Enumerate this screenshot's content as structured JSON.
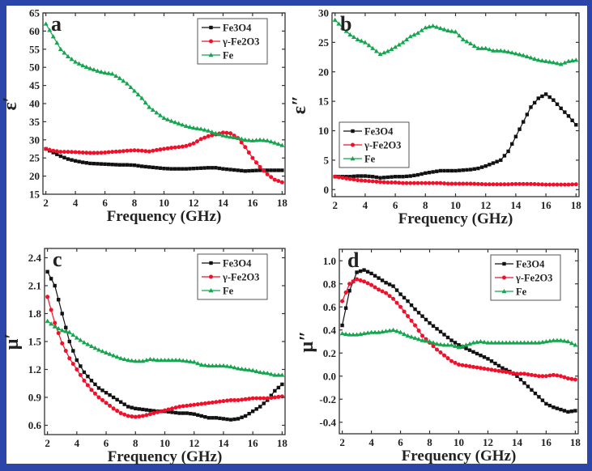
{
  "colors": {
    "frame": "#2b45a8",
    "Fe3O4": "#111111",
    "gFe2O3": "#f0102a",
    "Fe": "#15a54e"
  },
  "chart_data": [
    {
      "type": "line",
      "panel_label": "a",
      "ylabel": "ε′",
      "xlabel": "Frequency (GHz)",
      "xlim": [
        1.8,
        18.2
      ],
      "ylim": [
        15,
        65
      ],
      "xticks": [
        "2",
        "4",
        "6",
        "8",
        "10",
        "12",
        "14",
        "16",
        "18"
      ],
      "yticks": [
        "15",
        "20",
        "25",
        "30",
        "35",
        "40",
        "45",
        "50",
        "55",
        "60",
        "65"
      ],
      "legend_position": "top-right",
      "grid": false,
      "x": [
        2,
        2.5,
        3,
        3.5,
        4,
        4.5,
        5,
        5.5,
        6,
        6.5,
        7,
        7.5,
        8,
        8.5,
        9,
        9.5,
        10,
        10.5,
        11,
        11.5,
        12,
        12.5,
        13,
        13.5,
        14,
        14.5,
        15,
        15.5,
        16,
        16.5,
        17,
        17.5,
        18
      ],
      "series": [
        {
          "name": "Fe3O4",
          "marker": "square",
          "values": [
            27.5,
            26.5,
            25.5,
            24.7,
            24.2,
            23.8,
            23.5,
            23.4,
            23.3,
            23.2,
            23.1,
            23.1,
            23,
            22.7,
            22.5,
            22.3,
            22.1,
            22,
            22,
            22,
            22.1,
            22.2,
            22.3,
            22.3,
            22,
            21.8,
            21.6,
            21.4,
            21.5,
            21.6,
            21.6,
            21.6,
            21.6
          ]
        },
        {
          "name": "γ-Fe2O3",
          "marker": "circle",
          "values": [
            27.5,
            27,
            26.7,
            26.7,
            26.6,
            26.5,
            26.4,
            26.4,
            26.5,
            26.7,
            26.8,
            27,
            27.1,
            27,
            26.8,
            27.2,
            27.5,
            27.8,
            28,
            28.3,
            29,
            30.2,
            31,
            31.5,
            32,
            31.8,
            30.5,
            28,
            25,
            22.5,
            20.5,
            19,
            18.3
          ]
        },
        {
          "name": "Fe",
          "marker": "triangle",
          "values": [
            62,
            58.5,
            55,
            53,
            51.5,
            50.5,
            49.7,
            49,
            48.5,
            48.2,
            47,
            45.5,
            43.5,
            41.5,
            39,
            37.5,
            36,
            35.2,
            34.5,
            33.8,
            33.3,
            33,
            32.5,
            31.8,
            31.2,
            30.8,
            30.5,
            30,
            29.8,
            30,
            29.8,
            29.2,
            28.5
          ]
        }
      ]
    },
    {
      "type": "line",
      "panel_label": "b",
      "ylabel": "ε″",
      "xlabel": "Frequency (GHz)",
      "xlim": [
        1.8,
        18.2
      ],
      "ylim": [
        -1.2,
        30
      ],
      "xticks": [
        "2",
        "4",
        "6",
        "8",
        "10",
        "12",
        "14",
        "16",
        "18"
      ],
      "yticks": [
        "0",
        "5",
        "10",
        "15",
        "20",
        "25",
        "30"
      ],
      "legend_position": "center-left",
      "grid": false,
      "x": [
        2,
        2.5,
        3,
        3.5,
        4,
        4.5,
        5,
        5.5,
        6,
        6.5,
        7,
        7.5,
        8,
        8.5,
        9,
        9.5,
        10,
        10.5,
        11,
        11.5,
        12,
        12.5,
        13,
        13.5,
        14,
        14.5,
        15,
        15.5,
        16,
        16.5,
        17,
        17.5,
        18
      ],
      "series": [
        {
          "name": "Fe3O4",
          "marker": "square",
          "values": [
            2.2,
            2.2,
            2.2,
            2.3,
            2.3,
            2.2,
            2.0,
            2.1,
            2.2,
            2.2,
            2.3,
            2.5,
            2.8,
            3.0,
            3.2,
            3.2,
            3.2,
            3.3,
            3.4,
            3.6,
            4.0,
            4.5,
            5.0,
            6.5,
            9.0,
            11.5,
            14,
            15.5,
            16.2,
            15.2,
            13.8,
            12.5,
            11
          ]
        },
        {
          "name": "γ-Fe2O3",
          "marker": "circle",
          "values": [
            2.2,
            2.0,
            1.8,
            1.6,
            1.5,
            1.4,
            1.3,
            1.2,
            1.2,
            1.1,
            1.1,
            1.1,
            1.1,
            1.1,
            1.1,
            1.0,
            1.0,
            1.0,
            1.0,
            0.95,
            0.9,
            0.9,
            0.9,
            0.9,
            0.95,
            0.95,
            0.95,
            0.9,
            0.85,
            0.85,
            0.85,
            0.85,
            0.9
          ]
        },
        {
          "name": "Fe",
          "marker": "triangle",
          "values": [
            28.8,
            27.5,
            26.3,
            25.5,
            25,
            24,
            23,
            23.5,
            24.2,
            25,
            26,
            26.6,
            27.5,
            27.8,
            27.4,
            27,
            26.8,
            25.5,
            24.8,
            24,
            24,
            23.6,
            23.6,
            23.4,
            23.1,
            22.8,
            22.4,
            22,
            21.8,
            21.6,
            21.3,
            21.8,
            22
          ]
        }
      ]
    },
    {
      "type": "line",
      "panel_label": "c",
      "ylabel": "μ′",
      "xlabel": "Frequency (GHz)",
      "xlim": [
        1.8,
        18.2
      ],
      "ylim": [
        0.5,
        2.5
      ],
      "xticks": [
        "2",
        "4",
        "6",
        "8",
        "10",
        "12",
        "14",
        "16",
        "18"
      ],
      "yticks": [
        "0.6",
        "0.9",
        "1.2",
        "1.5",
        "1.8",
        "2.1",
        "2.4"
      ],
      "legend_position": "top-right",
      "grid": false,
      "x": [
        2,
        2.5,
        3,
        3.5,
        4,
        4.5,
        5,
        5.5,
        6,
        6.5,
        7,
        7.5,
        8,
        8.5,
        9,
        9.5,
        10,
        10.5,
        11,
        11.5,
        12,
        12.5,
        13,
        13.5,
        14,
        14.5,
        15,
        15.5,
        16,
        16.5,
        17,
        17.5,
        18
      ],
      "series": [
        {
          "name": "Fe3O4",
          "marker": "square",
          "values": [
            2.25,
            2.1,
            1.8,
            1.5,
            1.3,
            1.17,
            1.08,
            1.0,
            0.95,
            0.9,
            0.85,
            0.8,
            0.78,
            0.77,
            0.76,
            0.75,
            0.75,
            0.74,
            0.73,
            0.73,
            0.72,
            0.7,
            0.68,
            0.68,
            0.67,
            0.66,
            0.67,
            0.7,
            0.75,
            0.8,
            0.87,
            0.97,
            1.04
          ]
        },
        {
          "name": "γ-Fe2O3",
          "marker": "circle",
          "values": [
            1.98,
            1.7,
            1.48,
            1.32,
            1.2,
            1.08,
            0.98,
            0.9,
            0.84,
            0.78,
            0.73,
            0.7,
            0.69,
            0.7,
            0.72,
            0.74,
            0.76,
            0.78,
            0.8,
            0.81,
            0.82,
            0.83,
            0.84,
            0.85,
            0.86,
            0.87,
            0.87,
            0.88,
            0.89,
            0.89,
            0.89,
            0.9,
            0.91
          ]
        },
        {
          "name": "Fe",
          "marker": "triangle",
          "values": [
            1.72,
            1.66,
            1.62,
            1.6,
            1.54,
            1.49,
            1.45,
            1.41,
            1.38,
            1.35,
            1.32,
            1.3,
            1.29,
            1.29,
            1.31,
            1.3,
            1.3,
            1.3,
            1.3,
            1.29,
            1.28,
            1.25,
            1.24,
            1.24,
            1.24,
            1.23,
            1.21,
            1.2,
            1.19,
            1.17,
            1.16,
            1.14,
            1.14
          ]
        }
      ]
    },
    {
      "type": "line",
      "panel_label": "d",
      "ylabel": "μ″",
      "xlabel": "Frequency (GHz)",
      "xlim": [
        1.8,
        18.2
      ],
      "ylim": [
        -0.5,
        1.1
      ],
      "xticks": [
        "2",
        "4",
        "6",
        "8",
        "10",
        "12",
        "14",
        "16",
        "18"
      ],
      "yticks": [
        "-0.4",
        "-0.2",
        "0.0",
        "0.2",
        "0.4",
        "0.6",
        "0.8",
        "1.0"
      ],
      "legend_position": "top-right",
      "grid": false,
      "x": [
        2,
        2.5,
        3,
        3.5,
        4,
        4.5,
        5,
        5.5,
        6,
        6.5,
        7,
        7.5,
        8,
        8.5,
        9,
        9.5,
        10,
        10.5,
        11,
        11.5,
        12,
        12.5,
        13,
        13.5,
        14,
        14.5,
        15,
        15.5,
        16,
        16.5,
        17,
        17.5,
        18
      ],
      "series": [
        {
          "name": "Fe3O4",
          "marker": "square",
          "values": [
            0.44,
            0.74,
            0.9,
            0.92,
            0.89,
            0.85,
            0.81,
            0.78,
            0.71,
            0.65,
            0.58,
            0.52,
            0.46,
            0.41,
            0.36,
            0.31,
            0.27,
            0.24,
            0.21,
            0.18,
            0.15,
            0.11,
            0.07,
            0.04,
            0.0,
            -0.06,
            -0.12,
            -0.18,
            -0.24,
            -0.27,
            -0.29,
            -0.31,
            -0.3
          ]
        },
        {
          "name": "γ-Fe2O3",
          "marker": "circle",
          "values": [
            0.65,
            0.8,
            0.84,
            0.82,
            0.79,
            0.75,
            0.72,
            0.67,
            0.6,
            0.52,
            0.44,
            0.35,
            0.29,
            0.23,
            0.18,
            0.13,
            0.1,
            0.09,
            0.08,
            0.07,
            0.06,
            0.05,
            0.04,
            0.03,
            0.02,
            0.02,
            0.01,
            0.0,
            0.0,
            0.01,
            0.0,
            -0.02,
            -0.03
          ]
        },
        {
          "name": "Fe",
          "marker": "triangle",
          "values": [
            0.37,
            0.36,
            0.36,
            0.37,
            0.38,
            0.38,
            0.39,
            0.4,
            0.38,
            0.35,
            0.33,
            0.31,
            0.3,
            0.28,
            0.27,
            0.27,
            0.25,
            0.27,
            0.29,
            0.3,
            0.29,
            0.29,
            0.29,
            0.29,
            0.29,
            0.29,
            0.29,
            0.29,
            0.3,
            0.31,
            0.31,
            0.3,
            0.27
          ]
        }
      ]
    }
  ]
}
